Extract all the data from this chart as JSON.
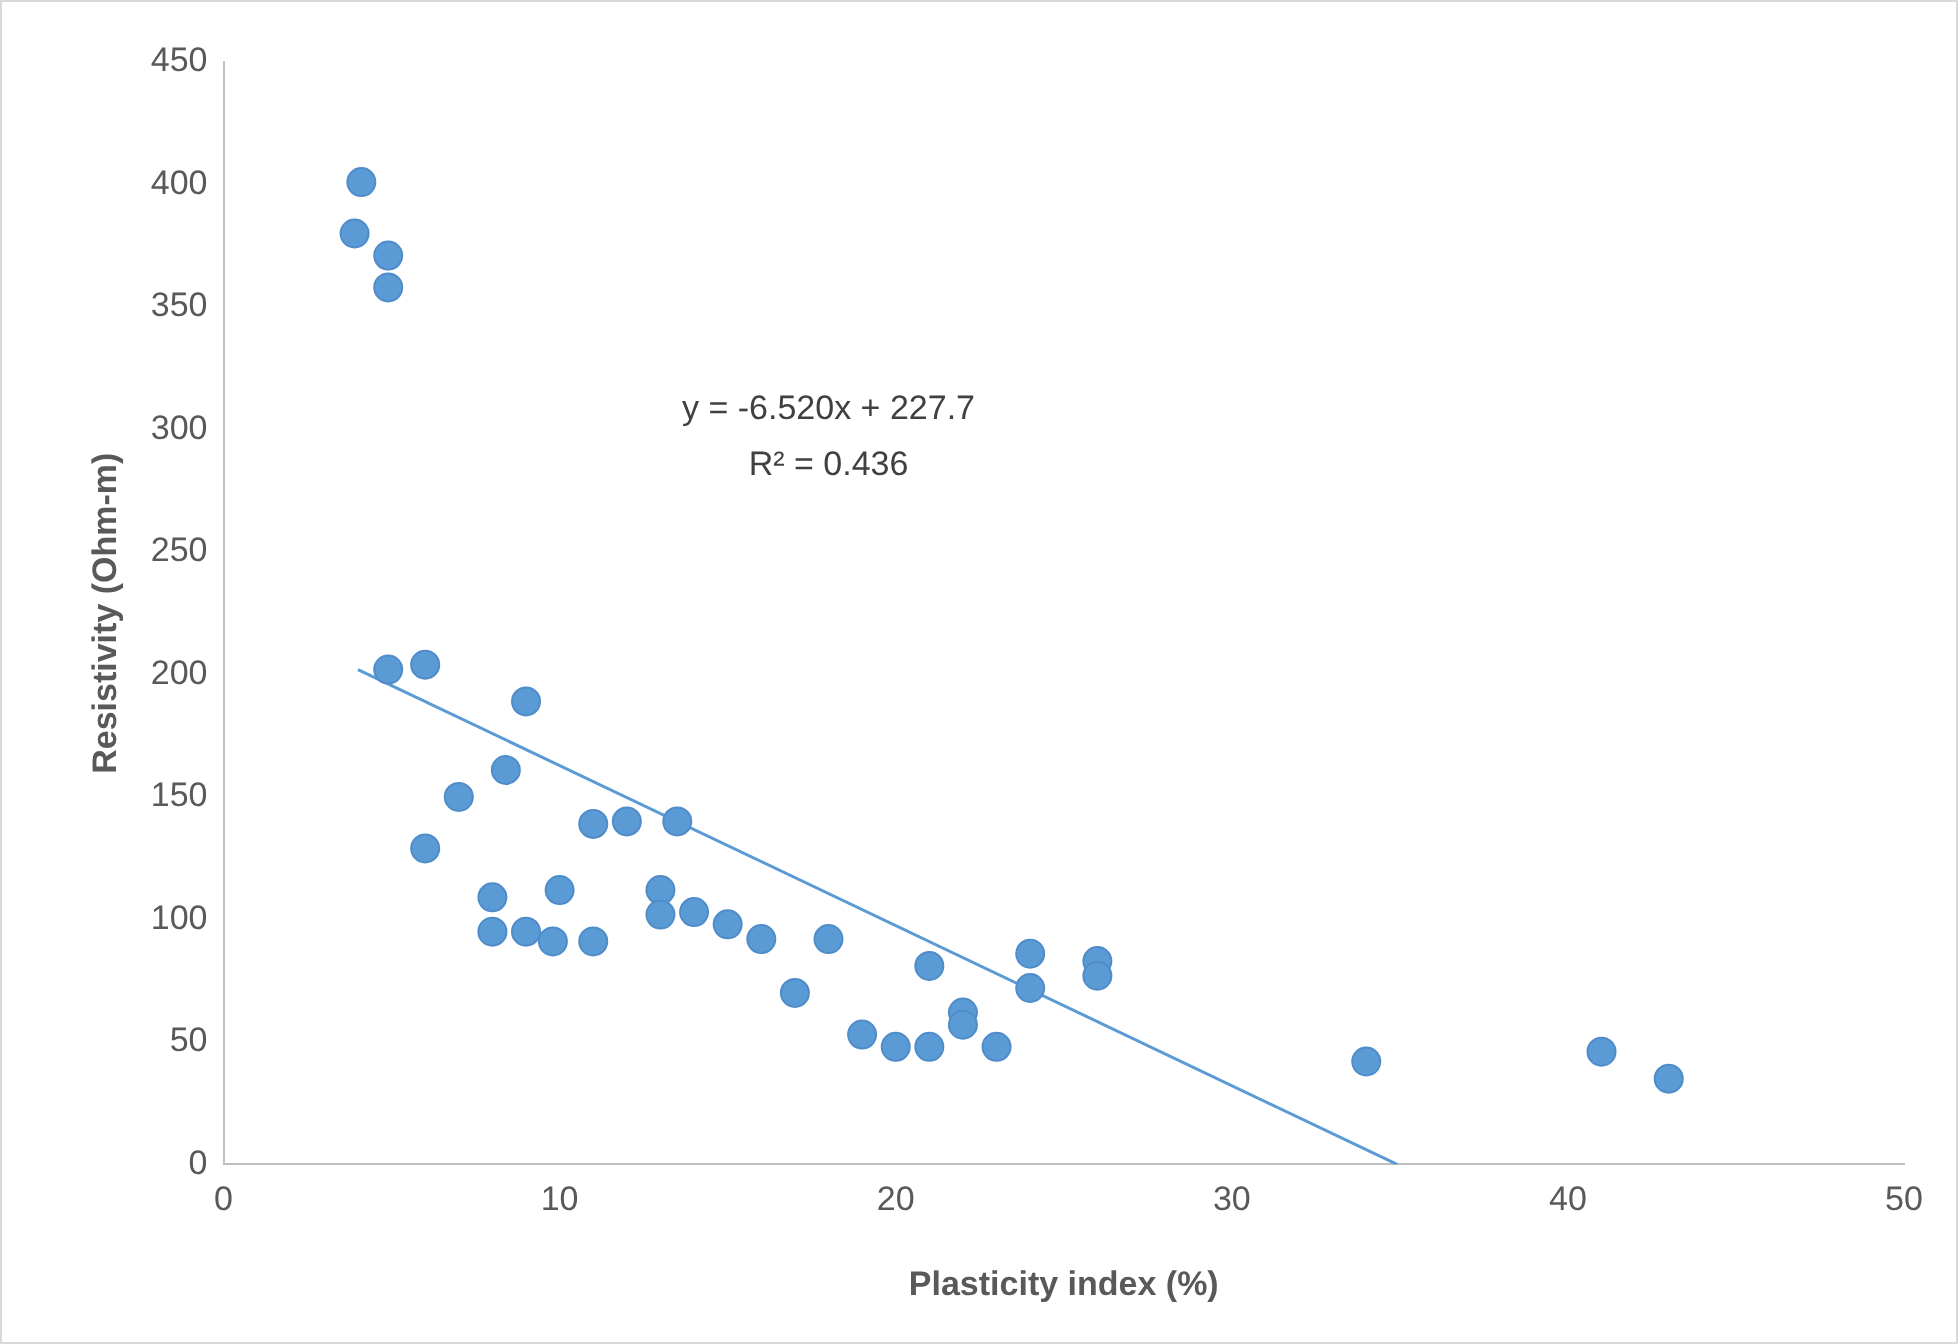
{
  "chart_data": {
    "type": "scatter",
    "xlabel": "Plasticity index (%)",
    "ylabel": "Resistivity (Ohm-m)",
    "xlim": [
      0,
      50
    ],
    "xticks": [
      0,
      10,
      20,
      30,
      40,
      50
    ],
    "ylim": [
      0,
      450
    ],
    "yticks": [
      0,
      50,
      100,
      150,
      200,
      250,
      300,
      350,
      400,
      450
    ],
    "grid": false,
    "marker": "circle",
    "annotations": [
      "y = -6.520x + 227.7",
      "R² = 0.436"
    ],
    "series": [
      {
        "color": "#5b9bd5",
        "x": [
          4.1,
          3.9,
          4.9,
          4.9,
          4.9,
          6,
          9,
          8.4,
          7,
          6,
          11,
          12,
          13.5,
          8,
          10,
          13,
          13,
          14,
          8,
          9,
          9.8,
          11,
          15,
          16,
          18,
          17,
          19,
          20,
          21,
          23,
          21,
          22,
          22,
          24,
          24,
          26,
          26,
          34,
          41,
          43
        ],
        "values": [
          401,
          380,
          371,
          358,
          202,
          204,
          189,
          161,
          150,
          129,
          139,
          140,
          140,
          109,
          112,
          112,
          102,
          103,
          95,
          95,
          91,
          91,
          98,
          92,
          92,
          70,
          53,
          48,
          48,
          48,
          81,
          62,
          57,
          86,
          72,
          83,
          77,
          42,
          46,
          35
        ]
      },
      {
        "type": "line",
        "color": "#5b9bd5",
        "marker": "none",
        "x": [
          4,
          34.92
        ],
        "values": [
          202,
          0
        ]
      }
    ]
  }
}
